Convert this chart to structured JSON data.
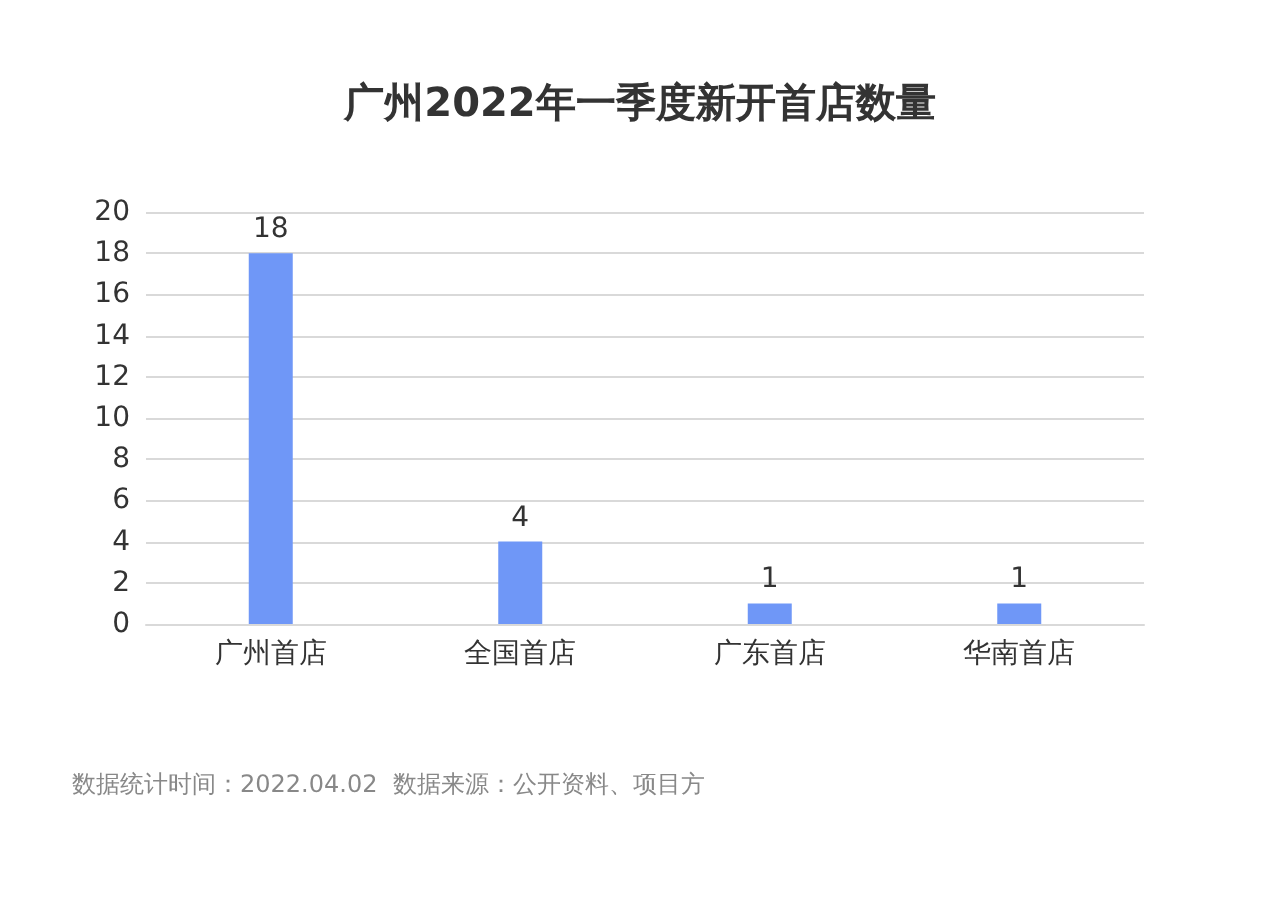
{
  "chart_data": {
    "type": "bar",
    "title": "广州2022年一季度新开首店数量",
    "categories": [
      "广州首店",
      "全国首店",
      "广东首店",
      "华南首店"
    ],
    "values": [
      18,
      4,
      1,
      1
    ],
    "color": "#6f97f7",
    "ylim": [
      0,
      20
    ],
    "yticks": [
      0,
      2,
      4,
      6,
      8,
      10,
      12,
      14,
      16,
      18,
      20
    ],
    "grid": "y",
    "data_labels": true,
    "annotations": [
      "数据统计时间：2022.04.02  数据来源：公开资料、项目方"
    ]
  }
}
